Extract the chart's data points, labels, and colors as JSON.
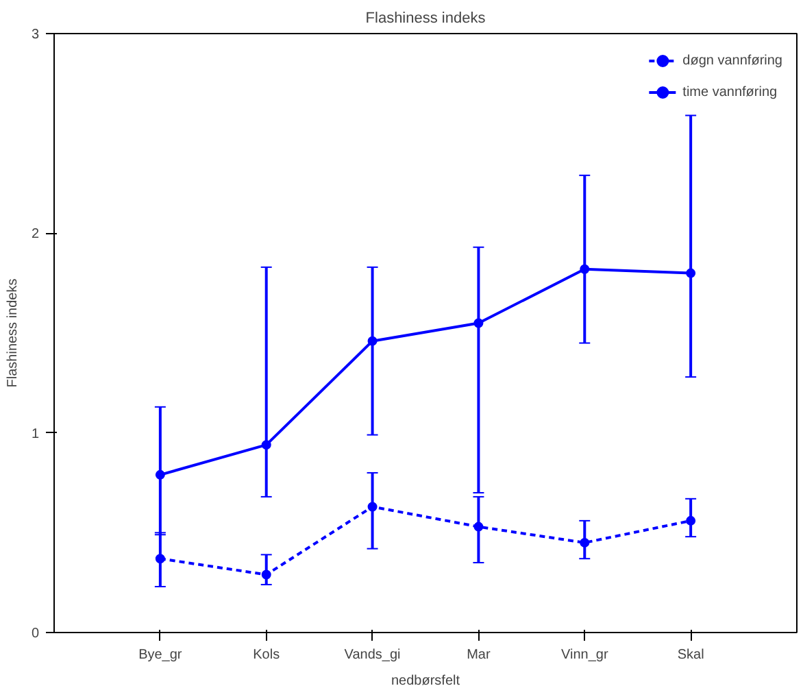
{
  "chart_data": {
    "type": "line",
    "title": "Flashiness indeks",
    "xlabel": "nedbørsfelt",
    "ylabel": "Flashiness indeks",
    "categories": [
      "Bye_gr",
      "Kols",
      "Vands_gi",
      "Mar",
      "Vinn_gr",
      "Skal"
    ],
    "series": [
      {
        "name": "døgn vannføring",
        "color": "#0000ff",
        "line_style": "dashed",
        "values": [
          0.37,
          0.29,
          0.63,
          0.53,
          0.45,
          0.56
        ],
        "errors": [
          [
            0.23,
            0.5
          ],
          [
            0.24,
            0.39
          ],
          [
            0.42,
            0.8
          ],
          [
            0.35,
            0.68
          ],
          [
            0.37,
            0.56
          ],
          [
            0.48,
            0.67
          ]
        ]
      },
      {
        "name": "time vannføring",
        "color": "#0000ff",
        "line_style": "solid",
        "values": [
          0.79,
          0.94,
          1.46,
          1.55,
          1.82,
          1.8
        ],
        "errors": [
          [
            0.49,
            1.13
          ],
          [
            0.68,
            1.83
          ],
          [
            0.99,
            1.83
          ],
          [
            0.7,
            1.93
          ],
          [
            1.45,
            2.29
          ],
          [
            1.28,
            2.59
          ]
        ]
      }
    ],
    "ylim": [
      0,
      3
    ],
    "yticks": [
      0,
      1,
      2,
      3
    ],
    "marker": "circle",
    "grid": false,
    "legend": "top right"
  }
}
